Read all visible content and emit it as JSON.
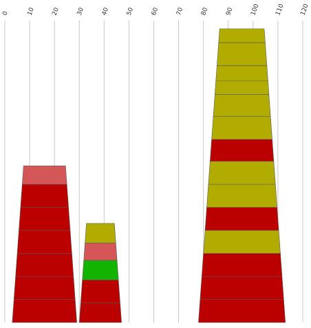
{
  "chart_data": {
    "type": "bar",
    "title": "",
    "xlabel": "",
    "ylabel": "",
    "xlim": [
      0,
      120
    ],
    "x_ticks": [
      "0",
      "10",
      "20",
      "30",
      "40",
      "50",
      "60",
      "70",
      "80",
      "90",
      "100",
      "110",
      "120"
    ],
    "grid": true,
    "colors": {
      "dark_red": "#bb0000",
      "light_red": "#d45656",
      "olive": "#b3ac00",
      "green": "#13b400"
    },
    "columns": [
      {
        "x_range": [
          3,
          29
        ],
        "segments": [
          {
            "color": "dark_red",
            "height": 1
          },
          {
            "color": "dark_red",
            "height": 1
          },
          {
            "color": "dark_red",
            "height": 1
          },
          {
            "color": "dark_red",
            "height": 1
          },
          {
            "color": "dark_red",
            "height": 1
          },
          {
            "color": "dark_red",
            "height": 1
          },
          {
            "color": "light_red",
            "height": 0.8
          }
        ]
      },
      {
        "x_range": [
          30,
          47
        ],
        "segments": [
          {
            "color": "dark_red",
            "height": 0.85
          },
          {
            "color": "dark_red",
            "height": 1
          },
          {
            "color": "green",
            "height": 0.85
          },
          {
            "color": "light_red",
            "height": 0.75
          },
          {
            "color": "olive",
            "height": 0.85
          }
        ]
      },
      {
        "x_range": [
          78,
          113
        ],
        "segments": [
          {
            "color": "dark_red",
            "height": 1
          },
          {
            "color": "dark_red",
            "height": 1
          },
          {
            "color": "dark_red",
            "height": 1
          },
          {
            "color": "olive",
            "height": 1
          },
          {
            "color": "dark_red",
            "height": 1
          },
          {
            "color": "olive",
            "height": 1
          },
          {
            "color": "olive",
            "height": 1
          },
          {
            "color": "dark_red",
            "height": 0.95
          },
          {
            "color": "olive",
            "height": 1
          },
          {
            "color": "olive",
            "height": 0.95
          },
          {
            "color": "olive",
            "height": 0.6
          },
          {
            "color": "olive",
            "height": 0.65
          },
          {
            "color": "olive",
            "height": 1
          },
          {
            "color": "olive",
            "height": 0.6
          }
        ]
      }
    ]
  }
}
